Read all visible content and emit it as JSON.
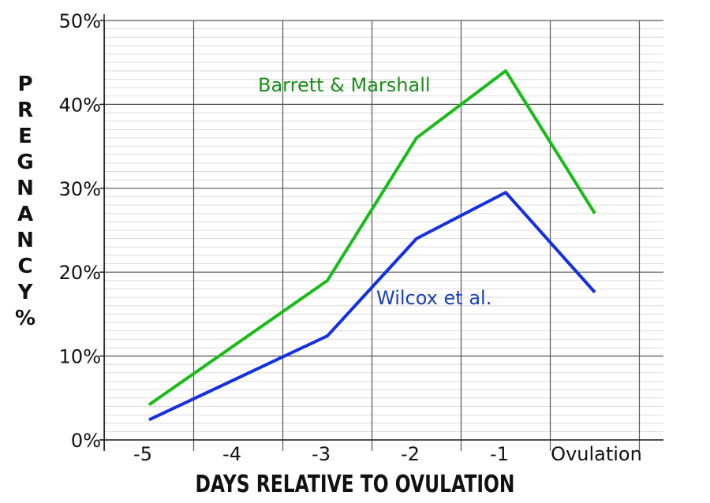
{
  "chart_data": {
    "type": "line",
    "title": "",
    "xlabel": "DAYS RELATIVE TO OVULATION",
    "ylabel": "PREGNANCY%",
    "categories": [
      "-5",
      "-4",
      "-3",
      "-2",
      "-1",
      "Ovulation"
    ],
    "y_ticks": [
      "0%",
      "10%",
      "20%",
      "30%",
      "40%",
      "50%"
    ],
    "ylim": [
      0,
      50
    ],
    "grid": true,
    "series": [
      {
        "name": "Barrett & Marshall",
        "color": "#19bb19",
        "label_color": "#1a8f1a",
        "values": [
          4.2,
          null,
          19,
          36,
          44,
          27
        ]
      },
      {
        "name": "Wilcox et al.",
        "color": "#1530e0",
        "label_color": "#1a3fb8",
        "values": [
          2.4,
          null,
          12.4,
          24,
          29.5,
          17.6
        ]
      }
    ]
  }
}
